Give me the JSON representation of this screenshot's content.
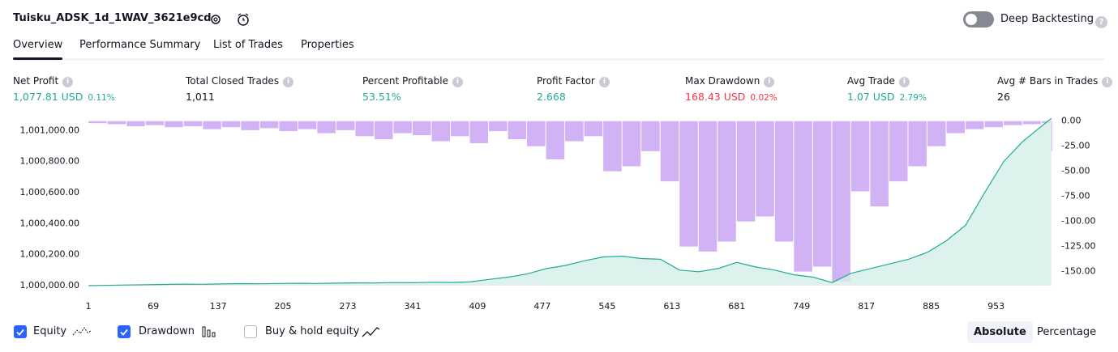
{
  "header": {
    "title": "Tuisku_ADSK_1d_1WAV_3621e9cd",
    "toggle_label": "Deep Backtesting",
    "toggle_on": false
  },
  "tabs": {
    "items": [
      "Overview",
      "Performance Summary",
      "List of Trades",
      "Properties"
    ],
    "active": 0
  },
  "metrics": [
    {
      "label": "Net Profit",
      "value": "1,077.81 USD",
      "percent": "0.11%",
      "color": "#22ab94"
    },
    {
      "label": "Total Closed Trades",
      "value": "1,011",
      "color": "#131722"
    },
    {
      "label": "Percent Profitable",
      "value": "53.51%",
      "color": "#22ab94"
    },
    {
      "label": "Profit Factor",
      "value": "2.668",
      "color": "#22ab94"
    },
    {
      "label": "Max Drawdown",
      "value": "168.43 USD",
      "percent": "0.02%",
      "color": "#f23645"
    },
    {
      "label": "Avg Trade",
      "value": "1.07 USD",
      "percent": "2.79%",
      "color": "#22ab94"
    },
    {
      "label": "Avg # Bars in Trades",
      "value": "26",
      "color": "#131722"
    }
  ],
  "chart_data": {
    "type": "line",
    "x": [
      1,
      21,
      41,
      61,
      81,
      101,
      121,
      141,
      161,
      181,
      201,
      221,
      241,
      261,
      281,
      301,
      321,
      341,
      361,
      381,
      401,
      421,
      441,
      461,
      481,
      501,
      521,
      541,
      561,
      581,
      601,
      621,
      641,
      661,
      681,
      701,
      721,
      741,
      761,
      781,
      801,
      821,
      841,
      861,
      881,
      901,
      921,
      941,
      961,
      981,
      1001,
      1011
    ],
    "series": [
      {
        "name": "Equity",
        "color": "#22ab94",
        "fill": "#d4efe9",
        "visible": true,
        "values": [
          1000000,
          1000002,
          1000004,
          1000006,
          1000008,
          1000010,
          1000009,
          1000011,
          1000013,
          1000012,
          1000014,
          1000015,
          1000014,
          1000016,
          1000018,
          1000017,
          1000020,
          1000019,
          1000022,
          1000021,
          1000024,
          1000040,
          1000055,
          1000075,
          1000110,
          1000130,
          1000160,
          1000185,
          1000190,
          1000175,
          1000170,
          1000100,
          1000090,
          1000110,
          1000150,
          1000120,
          1000100,
          1000070,
          1000055,
          1000020,
          1000080,
          1000110,
          1000140,
          1000170,
          1000215,
          1000290,
          1000390,
          1000600,
          1000800,
          1000930,
          1001030,
          1001077.81
        ]
      },
      {
        "name": "Drawdown",
        "type": "bar",
        "axis": "y2",
        "color": "#d1b3f5",
        "visible": true,
        "values": [
          -2,
          -3,
          -5,
          -4,
          -6,
          -5,
          -8,
          -6,
          -9,
          -7,
          -10,
          -8,
          -12,
          -9,
          -15,
          -18,
          -12,
          -14,
          -20,
          -15,
          -22,
          -10,
          -18,
          -25,
          -38,
          -20,
          -15,
          -50,
          -45,
          -30,
          -60,
          -125,
          -130,
          -120,
          -100,
          -95,
          -120,
          -150,
          -145,
          -160,
          -70,
          -85,
          -60,
          -45,
          -25,
          -12,
          -8,
          -6,
          -4,
          -3,
          -2,
          -30
        ]
      }
    ],
    "xlim": [
      0,
      1012
    ],
    "xticks": [
      1,
      69,
      137,
      205,
      273,
      341,
      409,
      477,
      545,
      613,
      681,
      749,
      817,
      885,
      953
    ],
    "ylim": [
      1000000,
      1001080
    ],
    "yticks": [
      {
        "value": 1000000,
        "label": "1,000,000.00"
      },
      {
        "value": 1000200,
        "label": "1,000,200.00"
      },
      {
        "value": 1000400,
        "label": "1,000,400.00"
      },
      {
        "value": 1000600,
        "label": "1,000,600.00"
      },
      {
        "value": 1000800,
        "label": "1,000,800.00"
      },
      {
        "value": 1001000,
        "label": "1,001,000.00"
      }
    ],
    "y2lim": [
      -164,
      3
    ],
    "y2ticks": [
      {
        "value": 0,
        "label": "0.00"
      },
      {
        "value": -25,
        "label": "-25.00"
      },
      {
        "value": -50,
        "label": "-50.00"
      },
      {
        "value": -75,
        "label": "-75.00"
      },
      {
        "value": -100,
        "label": "-100.00"
      },
      {
        "value": -125,
        "label": "-125.00"
      },
      {
        "value": -150,
        "label": "-150.00"
      }
    ]
  },
  "controls": {
    "buy_hold": {
      "label": "Buy & hold equity",
      "checked": false
    }
  },
  "views": {
    "items": [
      "Absolute",
      "Percentage"
    ],
    "active": 0
  }
}
